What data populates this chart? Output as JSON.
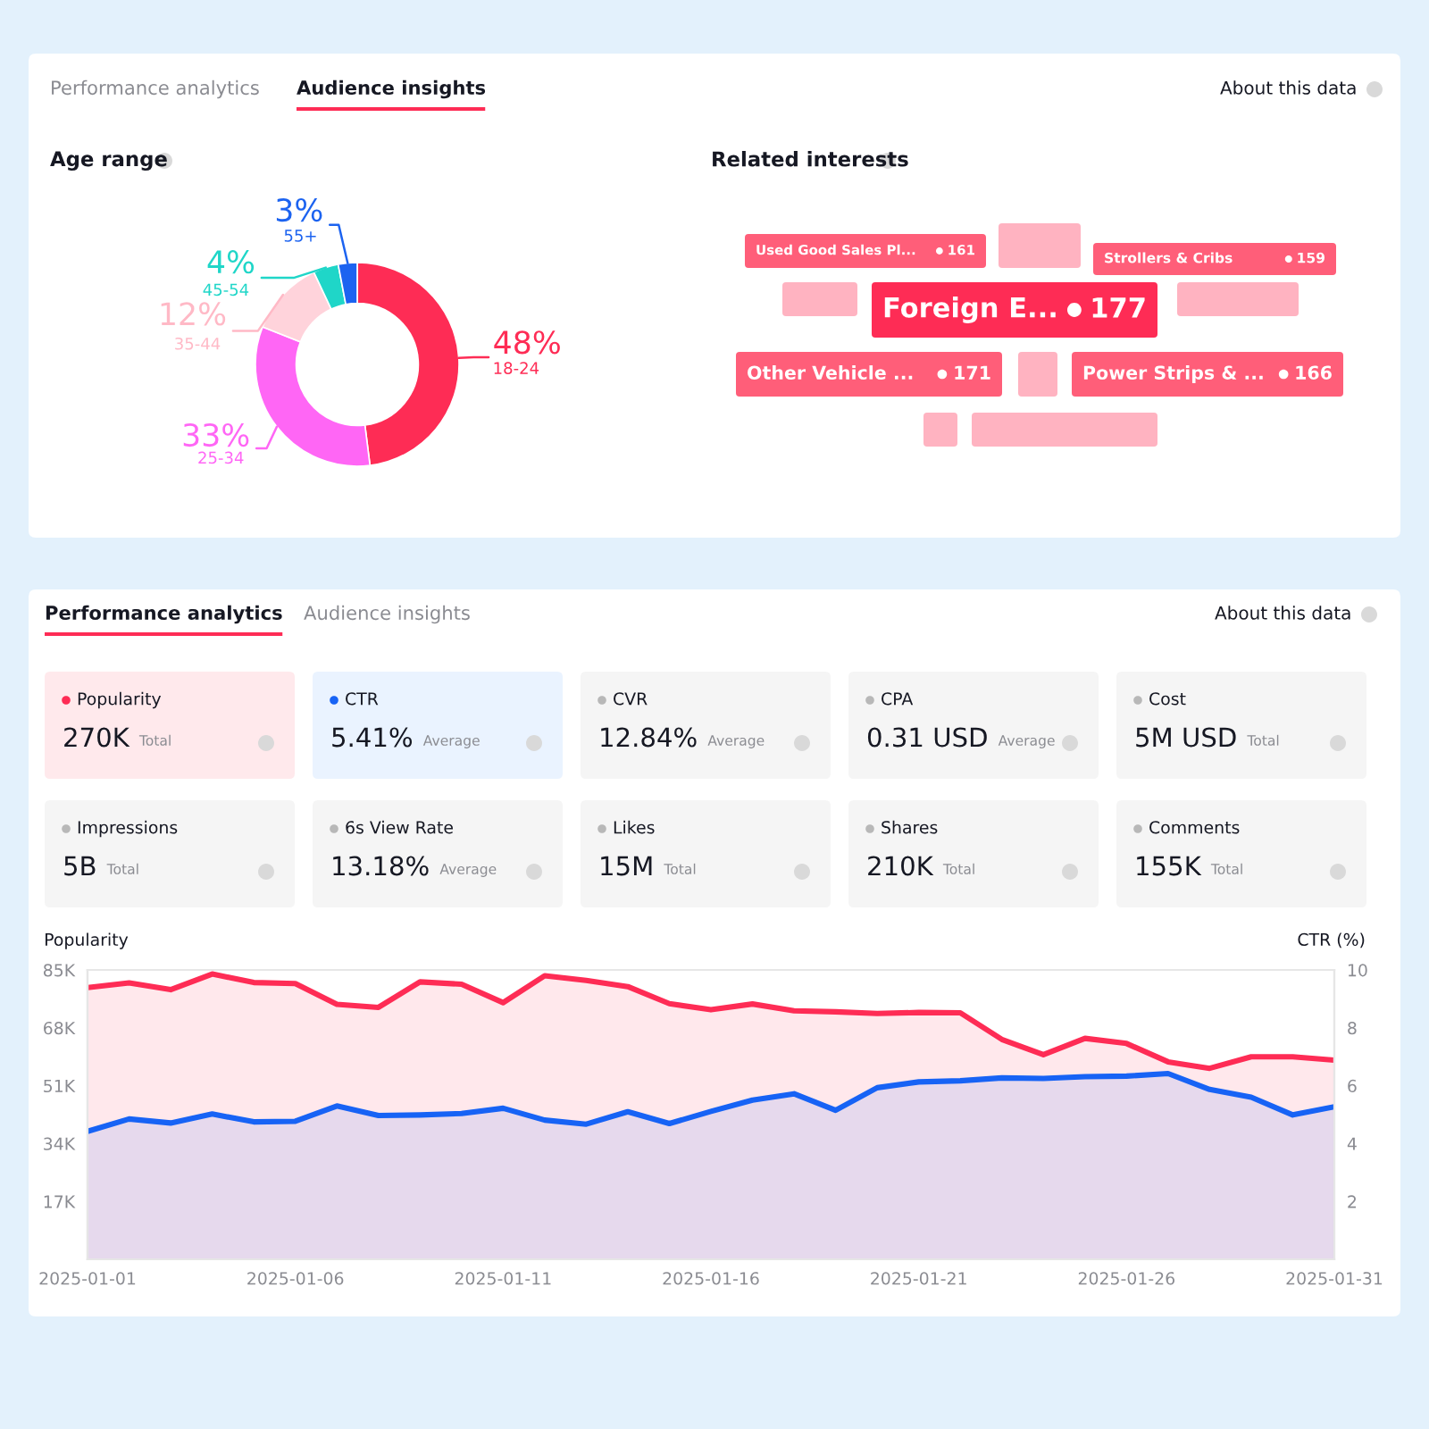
{
  "chart_data": [
    {
      "type": "other",
      "annotations": [
        "Performance analytics",
        "Audience insights",
        "About this data"
      ]
    },
    {
      "type": "donut",
      "title": "Age range",
      "categories": [
        "18-24",
        "25-34",
        "35-44",
        "45-54",
        "55+"
      ],
      "values": [
        48,
        33,
        12,
        4,
        3
      ],
      "value_labels": [
        "48%",
        "33%",
        "12%",
        "4%",
        "3%"
      ],
      "colors": [
        "#fe2c55",
        "#ff66f5",
        "#ffd3db",
        "#1fd6c8",
        "#1c63f0"
      ]
    },
    {
      "type": "other",
      "title": "Related interests",
      "categories": [
        "Used Good Sales Pl...",
        "Strollers & Cribs",
        "Foreign E...",
        "Other Vehicle ...",
        "Power Strips & ..."
      ],
      "values": [
        161,
        159,
        177,
        171,
        166
      ],
      "colors": [
        "#ff5e79",
        "#ff5e79",
        "#fe2c55",
        "#ff5e79",
        "#ff5e79"
      ],
      "data_labels": true
    },
    {
      "type": "other",
      "annotations": [
        "Performance analytics",
        "Audience insights",
        "About this data"
      ]
    },
    {
      "type": "other",
      "annotations": [
        "Popularity",
        "270K",
        "Total",
        "CTR",
        "5.41%",
        "Average",
        "CVR",
        "12.84%",
        "Average",
        "CPA",
        "0.31 USD",
        "Average",
        "Cost",
        "5M USD",
        "Total",
        "Impressions",
        "5B",
        "Total",
        "6s View Rate",
        "13.18%",
        "Average",
        "Likes",
        "15M",
        "Total",
        "Shares",
        "210K",
        "Total",
        "Comments",
        "155K",
        "Total"
      ]
    },
    {
      "type": "area",
      "ylabel": "Popularity",
      "y2label": "CTR (%)",
      "x": [
        "2025-01-01",
        "2025-01-02",
        "2025-01-03",
        "2025-01-04",
        "2025-01-05",
        "2025-01-06",
        "2025-01-07",
        "2025-01-08",
        "2025-01-09",
        "2025-01-10",
        "2025-01-11",
        "2025-01-12",
        "2025-01-13",
        "2025-01-14",
        "2025-01-15",
        "2025-01-16",
        "2025-01-17",
        "2025-01-18",
        "2025-01-19",
        "2025-01-20",
        "2025-01-21",
        "2025-01-22",
        "2025-01-23",
        "2025-01-24",
        "2025-01-25",
        "2025-01-26",
        "2025-01-27",
        "2025-01-28",
        "2025-01-29",
        "2025-01-30",
        "2025-01-31"
      ],
      "series": [
        {
          "color": "#fe2c55",
          "values": [
            79800,
            81200,
            79200,
            83800,
            81300,
            81000,
            74900,
            74000,
            81500,
            80800,
            75400,
            83300,
            81900,
            80100,
            75100,
            73300,
            75000,
            73000,
            72700,
            72200,
            72500,
            72400,
            64600,
            60100,
            64900,
            63400,
            58000,
            56100,
            59500,
            59500,
            58500
          ]
        },
        {
          "color": "#1763f5",
          "axis": "y2",
          "values": [
            4.42,
            4.85,
            4.71,
            5.02,
            4.75,
            4.77,
            5.3,
            4.97,
            4.99,
            5.04,
            5.22,
            4.81,
            4.67,
            5.1,
            4.69,
            5.11,
            5.5,
            5.72,
            5.15,
            5.93,
            6.13,
            6.17,
            6.27,
            6.25,
            6.31,
            6.33,
            6.42,
            5.87,
            5.6,
            4.99,
            5.27
          ]
        }
      ],
      "xlim": [
        "2025-01-01",
        "2025-01-31"
      ],
      "xticks": [
        "2025-01-01",
        "2025-01-06",
        "2025-01-11",
        "2025-01-16",
        "2025-01-21",
        "2025-01-26",
        "2025-01-31"
      ],
      "ylim": [
        0,
        85000
      ],
      "yticks": [
        {
          "value": 17000,
          "label": "17K"
        },
        {
          "value": 34000,
          "label": "34K"
        },
        {
          "value": 51000,
          "label": "51K"
        },
        {
          "value": 68000,
          "label": "68K"
        },
        {
          "value": 85000,
          "label": "85K"
        }
      ],
      "y2lim": [
        0,
        10
      ],
      "y2ticks": [
        2,
        4,
        6,
        8,
        10
      ],
      "grid": false,
      "legend": false
    }
  ]
}
